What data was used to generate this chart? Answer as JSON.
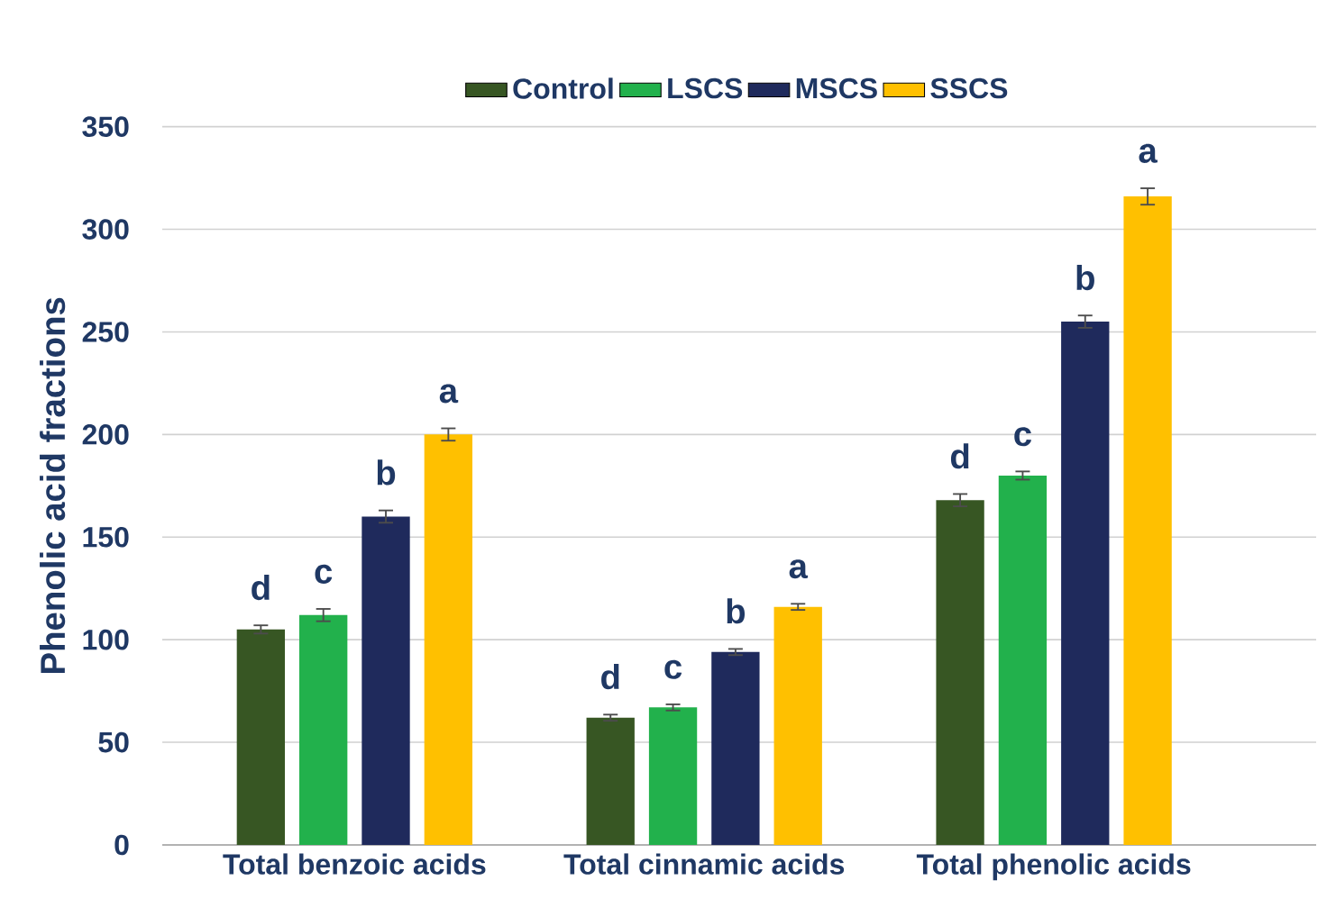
{
  "chart_data": {
    "type": "bar",
    "ylabel": "Phenolic acid fractions",
    "categories": [
      "Total benzoic acids",
      "Total cinnamic acids",
      "Total phenolic acids"
    ],
    "series": [
      {
        "name": "Control",
        "color": "#375623",
        "values": [
          105,
          62,
          168
        ],
        "errors": [
          2,
          1.5,
          3
        ],
        "value_labels": [
          "d",
          "d",
          "d"
        ]
      },
      {
        "name": "LSCS",
        "color": "#22b14c",
        "values": [
          112,
          67,
          180
        ],
        "errors": [
          3,
          1.5,
          2
        ],
        "value_labels": [
          "c",
          "c",
          "c"
        ]
      },
      {
        "name": "MSCS",
        "color": "#1f2a5c",
        "values": [
          160,
          94,
          255
        ],
        "errors": [
          3,
          1.5,
          3
        ],
        "value_labels": [
          "b",
          "b",
          "b"
        ]
      },
      {
        "name": "SSCS",
        "color": "#ffc000",
        "values": [
          200,
          116,
          316
        ],
        "errors": [
          3,
          1.5,
          4
        ],
        "value_labels": [
          "a",
          "a",
          "a"
        ]
      }
    ],
    "ylim": [
      0,
      350
    ],
    "yticks": [
      0,
      50,
      100,
      150,
      200,
      250,
      300,
      350
    ],
    "grid": "y",
    "legend": "top"
  }
}
